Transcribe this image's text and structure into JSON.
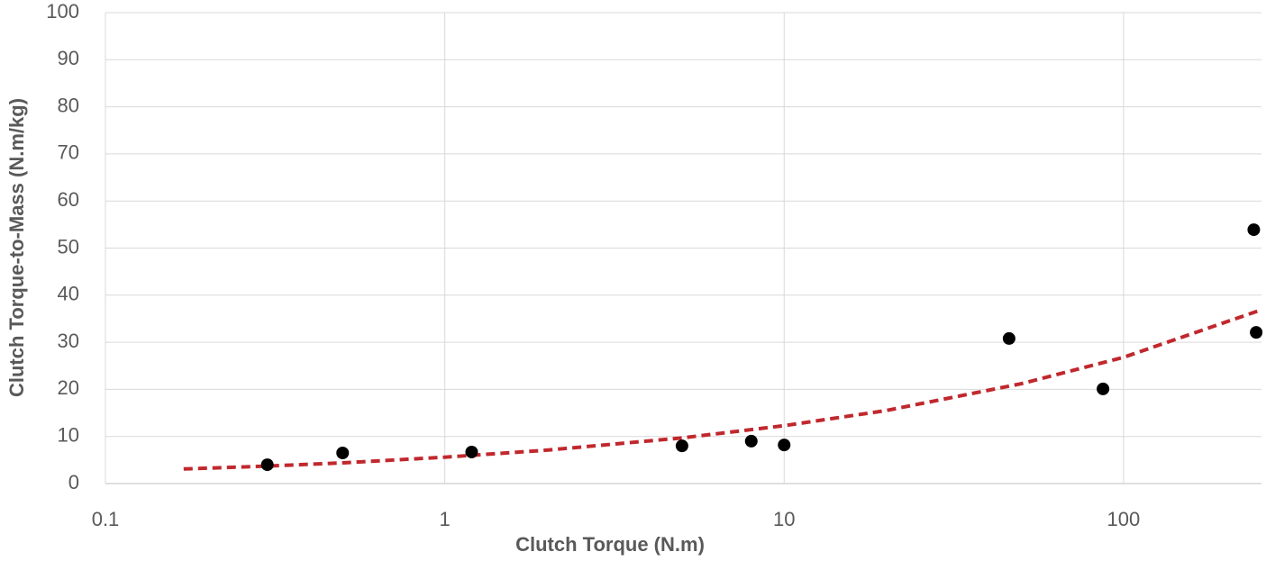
{
  "chart_data": {
    "type": "scatter",
    "x_label": "Clutch Torque (N.m)",
    "y_label": "Clutch Torque-to-Mass (N.m/kg)",
    "xscale": "log",
    "xlim": [
      0.1,
      255
    ],
    "xticks": [
      0.1,
      1,
      10,
      100
    ],
    "ylim": [
      0,
      100
    ],
    "yticks": [
      0,
      10,
      20,
      30,
      40,
      50,
      60,
      70,
      80,
      90,
      100
    ],
    "grid": true,
    "series": [
      {
        "type": "scatter",
        "color": "#000000",
        "x": [
          0.3,
          0.5,
          1.2,
          5,
          8,
          10,
          46,
          87,
          242,
          246
        ],
        "values": [
          4.0,
          6.5,
          6.7,
          8.0,
          9.0,
          8.2,
          30.8,
          20.1,
          53.9,
          32.1
        ]
      },
      {
        "type": "line",
        "color": "#c0282d",
        "dashed": true,
        "x": [
          0.17,
          0.3,
          0.5,
          1,
          2,
          5,
          10,
          20,
          50,
          100,
          255
        ],
        "values": [
          3.1,
          3.7,
          4.4,
          5.6,
          7.1,
          9.7,
          12.3,
          15.5,
          21.2,
          26.8,
          36.9
        ]
      }
    ]
  }
}
